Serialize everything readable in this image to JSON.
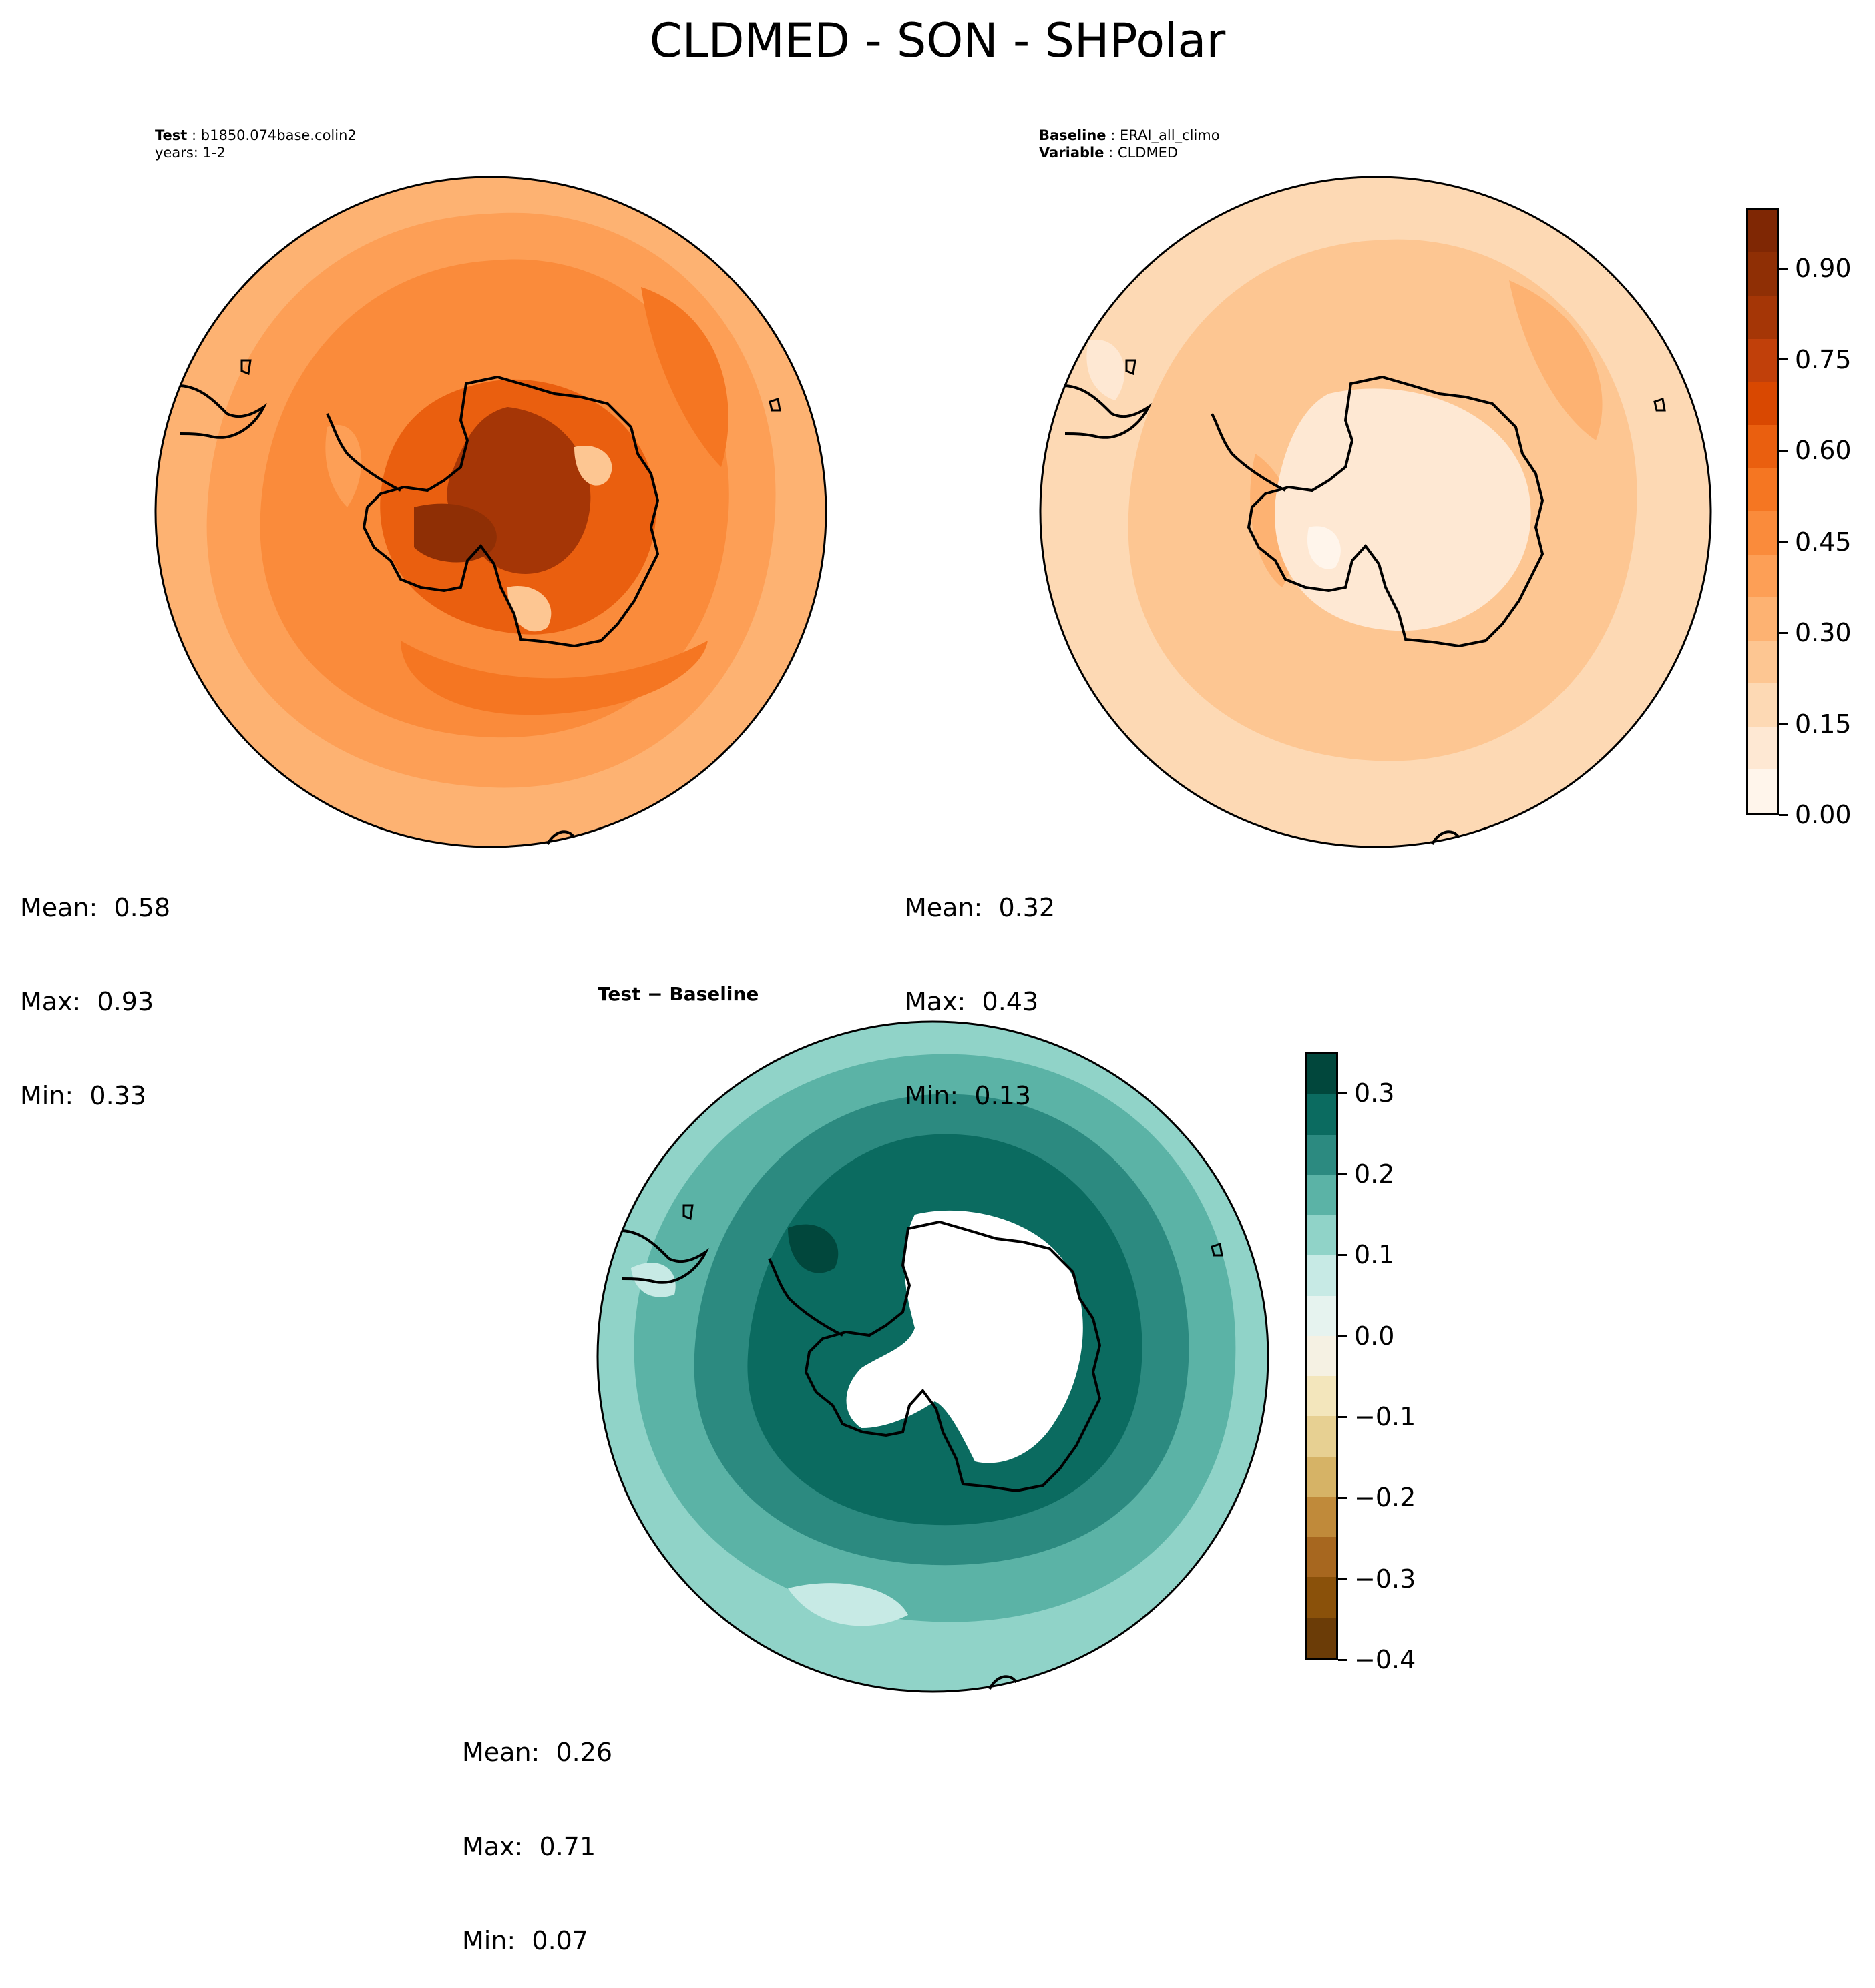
{
  "title": "CLDMED - SON - SHPolar",
  "panels": {
    "test": {
      "header": {
        "label": "Test",
        "value": "b1850.074base.colin2",
        "line2": "years: 1-2"
      },
      "stats": {
        "mean": "Mean:  0.58",
        "max": "Max:  0.93",
        "min": "Min:  0.33"
      }
    },
    "baseline": {
      "header": {
        "label": "Baseline",
        "value": "ERAI_all_climo",
        "label2": "Variable",
        "value2": "CLDMED"
      },
      "stats": {
        "mean": "Mean:  0.32",
        "max": "Max:  0.43",
        "min": "Min:  0.13"
      }
    },
    "diff": {
      "header": {
        "label": "Test − Baseline"
      },
      "stats": {
        "mean": "Mean:  0.26",
        "max": "Max:  0.71",
        "min": "Min:  0.07"
      }
    }
  },
  "colorbars": {
    "oranges": {
      "range": [
        0.0,
        1.0
      ],
      "tick_values": [
        0.0,
        0.15,
        0.3,
        0.45,
        0.6,
        0.75,
        0.9
      ],
      "tick_labels": [
        "0.00",
        "0.15",
        "0.30",
        "0.45",
        "0.60",
        "0.75",
        "0.90"
      ],
      "colors": [
        "#fff5eb",
        "#fee8d3",
        "#fdd9b4",
        "#fdc692",
        "#fdb272",
        "#fd9f56",
        "#fa8b3b",
        "#f57622",
        "#ea5f0f",
        "#d94801",
        "#c1400a",
        "#a53606",
        "#8f2f05",
        "#7f2704"
      ]
    },
    "brbg": {
      "range": [
        -0.4,
        0.35
      ],
      "tick_values": [
        -0.4,
        -0.3,
        -0.2,
        -0.1,
        0.0,
        0.1,
        0.2,
        0.3
      ],
      "tick_labels": [
        "−0.4",
        "−0.3",
        "−0.2",
        "−0.1",
        "0.0",
        "0.1",
        "0.2",
        "0.3"
      ],
      "colors": [
        "#6b3c07",
        "#8a510a",
        "#a7671f",
        "#c08a3a",
        "#d6b366",
        "#e7d092",
        "#f3e6bc",
        "#f5f1e3",
        "#e6f3ef",
        "#c7eae5",
        "#90d3c8",
        "#5bb3a6",
        "#2c8a80",
        "#0b6b60",
        "#01473c"
      ]
    }
  },
  "map_colors": {
    "test": [
      "#fdb272",
      "#fd9f56",
      "#fa8b3b",
      "#f57622",
      "#ea5f0f",
      "#d94801",
      "#a53606",
      "#fdc692"
    ],
    "baseline": [
      "#fdd9b4",
      "#fdc692",
      "#fdb272",
      "#fee8d3",
      "#fff5eb"
    ],
    "diff": [
      "#90d3c8",
      "#5bb3a6",
      "#2c8a80",
      "#0b6b60",
      "#01473c",
      "#c7eae5",
      "#ffffff"
    ]
  }
}
